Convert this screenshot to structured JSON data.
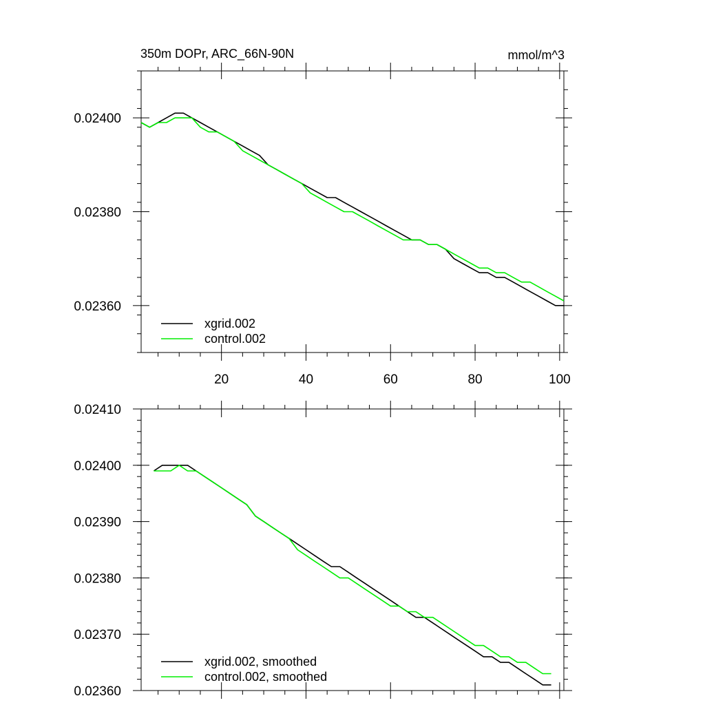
{
  "colors": {
    "series_0": "#000000",
    "series_1": "#00ee00",
    "axis": "#000000"
  },
  "chart_data": [
    {
      "type": "line",
      "title": "350m DOPr, ARC_66N-90N",
      "units": "mmol/m^3",
      "xlim": [
        1,
        101
      ],
      "ylim": [
        0.0235,
        0.0241
      ],
      "xticks": [
        20,
        40,
        60,
        80,
        100
      ],
      "xtick_labels": [
        "20",
        "40",
        "60",
        "80",
        "100"
      ],
      "yticks": [
        0.0236,
        0.0238,
        0.024
      ],
      "ytick_labels": [
        "0.02360",
        "0.02380",
        "0.02400"
      ],
      "legend": "bottom-left",
      "series": [
        {
          "name": "xgrid.002",
          "x": [
            1,
            3,
            5,
            7,
            9,
            11,
            13,
            15,
            17,
            19,
            21,
            23,
            25,
            27,
            29,
            31,
            33,
            35,
            37,
            39,
            41,
            43,
            45,
            47,
            49,
            51,
            53,
            55,
            57,
            59,
            61,
            63,
            65,
            67,
            69,
            71,
            73,
            75,
            77,
            79,
            81,
            83,
            85,
            87,
            89,
            91,
            93,
            95,
            97,
            99,
            101
          ],
          "y": [
            0.02399,
            0.02398,
            0.02399,
            0.024,
            0.02401,
            0.02401,
            0.024,
            0.02399,
            0.02398,
            0.02397,
            0.02396,
            0.02395,
            0.02394,
            0.02393,
            0.02392,
            0.0239,
            0.02389,
            0.02388,
            0.02387,
            0.02386,
            0.02385,
            0.02384,
            0.02383,
            0.02383,
            0.02382,
            0.02381,
            0.0238,
            0.02379,
            0.02378,
            0.02377,
            0.02376,
            0.02375,
            0.02374,
            0.02374,
            0.02373,
            0.02373,
            0.02372,
            0.0237,
            0.02369,
            0.02368,
            0.02367,
            0.02367,
            0.02366,
            0.02366,
            0.02365,
            0.02364,
            0.02363,
            0.02362,
            0.02361,
            0.0236,
            0.0236
          ]
        },
        {
          "name": "control.002",
          "x": [
            1,
            3,
            5,
            7,
            9,
            11,
            13,
            15,
            17,
            19,
            21,
            23,
            25,
            27,
            29,
            31,
            33,
            35,
            37,
            39,
            41,
            43,
            45,
            47,
            49,
            51,
            53,
            55,
            57,
            59,
            61,
            63,
            65,
            67,
            69,
            71,
            73,
            75,
            77,
            79,
            81,
            83,
            85,
            87,
            89,
            91,
            93,
            95,
            97,
            99,
            101
          ],
          "y": [
            0.02399,
            0.02398,
            0.02399,
            0.02399,
            0.024,
            0.024,
            0.024,
            0.02398,
            0.02397,
            0.02397,
            0.02396,
            0.02395,
            0.02393,
            0.02392,
            0.02391,
            0.0239,
            0.02389,
            0.02388,
            0.02387,
            0.02386,
            0.02384,
            0.02383,
            0.02382,
            0.02381,
            0.0238,
            0.0238,
            0.02379,
            0.02378,
            0.02377,
            0.02376,
            0.02375,
            0.02374,
            0.02374,
            0.02374,
            0.02373,
            0.02373,
            0.02372,
            0.02371,
            0.0237,
            0.02369,
            0.02368,
            0.02368,
            0.02367,
            0.02367,
            0.02366,
            0.02365,
            0.02365,
            0.02364,
            0.02363,
            0.02362,
            0.02361
          ]
        }
      ]
    },
    {
      "type": "line",
      "xlim": [
        1,
        101
      ],
      "ylim": [
        0.0236,
        0.0241
      ],
      "xticks": [
        20,
        40,
        60,
        80,
        100
      ],
      "xtick_labels": [],
      "yticks": [
        0.0236,
        0.0237,
        0.0238,
        0.0239,
        0.024,
        0.0241
      ],
      "ytick_labels": [
        "0.02360",
        "0.02370",
        "0.02380",
        "0.02390",
        "0.02400",
        "0.02410"
      ],
      "legend": "bottom-left",
      "series": [
        {
          "name": "xgrid.002, smoothed",
          "x": [
            4,
            6,
            8,
            10,
            12,
            14,
            16,
            18,
            20,
            22,
            24,
            26,
            28,
            30,
            32,
            34,
            36,
            38,
            40,
            42,
            44,
            46,
            48,
            50,
            52,
            54,
            56,
            58,
            60,
            62,
            64,
            66,
            68,
            70,
            72,
            74,
            76,
            78,
            80,
            82,
            84,
            86,
            88,
            90,
            92,
            94,
            96,
            98
          ],
          "y": [
            0.02399,
            0.024,
            0.024,
            0.024,
            0.024,
            0.02399,
            0.02398,
            0.02397,
            0.02396,
            0.02395,
            0.02394,
            0.02393,
            0.02391,
            0.0239,
            0.02389,
            0.02388,
            0.02387,
            0.02386,
            0.02385,
            0.02384,
            0.02383,
            0.02382,
            0.02382,
            0.02381,
            0.0238,
            0.02379,
            0.02378,
            0.02377,
            0.02376,
            0.02375,
            0.02374,
            0.02373,
            0.02373,
            0.02372,
            0.02371,
            0.0237,
            0.02369,
            0.02368,
            0.02367,
            0.02366,
            0.02366,
            0.02365,
            0.02365,
            0.02364,
            0.02363,
            0.02362,
            0.02361,
            0.02361
          ]
        },
        {
          "name": "control.002, smoothed",
          "x": [
            4,
            6,
            8,
            10,
            12,
            14,
            16,
            18,
            20,
            22,
            24,
            26,
            28,
            30,
            32,
            34,
            36,
            38,
            40,
            42,
            44,
            46,
            48,
            50,
            52,
            54,
            56,
            58,
            60,
            62,
            64,
            66,
            68,
            70,
            72,
            74,
            76,
            78,
            80,
            82,
            84,
            86,
            88,
            90,
            92,
            94,
            96,
            98
          ],
          "y": [
            0.02399,
            0.02399,
            0.02399,
            0.024,
            0.02399,
            0.02399,
            0.02398,
            0.02397,
            0.02396,
            0.02395,
            0.02394,
            0.02393,
            0.02391,
            0.0239,
            0.02389,
            0.02388,
            0.02387,
            0.02385,
            0.02384,
            0.02383,
            0.02382,
            0.02381,
            0.0238,
            0.0238,
            0.02379,
            0.02378,
            0.02377,
            0.02376,
            0.02375,
            0.02375,
            0.02374,
            0.02374,
            0.02373,
            0.02373,
            0.02372,
            0.02371,
            0.0237,
            0.02369,
            0.02368,
            0.02368,
            0.02367,
            0.02366,
            0.02366,
            0.02365,
            0.02365,
            0.02364,
            0.02363,
            0.02363
          ]
        }
      ]
    }
  ]
}
